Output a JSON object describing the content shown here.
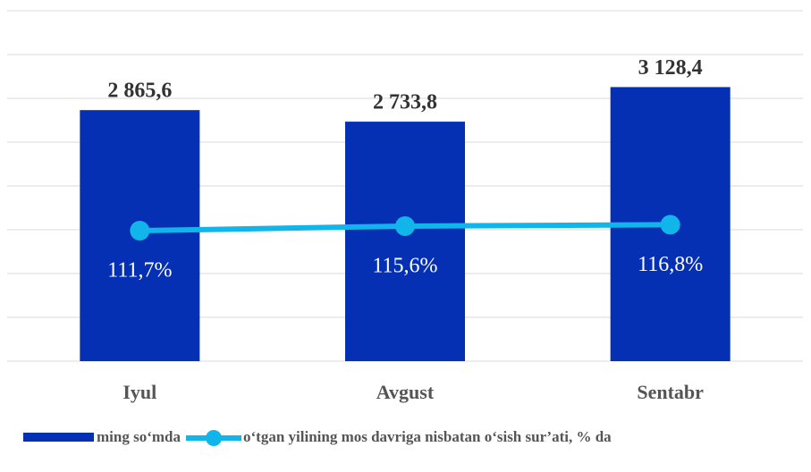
{
  "chart_data": {
    "type": "bar_line",
    "categories": [
      "Iyul",
      "Avgust",
      "Sentabr"
    ],
    "series": [
      {
        "name": "ming so‘mda",
        "type": "bar",
        "color": "#0530b4",
        "values": [
          2865.6,
          2733.8,
          3128.4
        ],
        "value_labels": [
          "2 865,6",
          "2 733,8",
          "3 128,4"
        ]
      },
      {
        "name": "o‘tgan yilining mos davriga nisbatan o‘sish sur’ati, % da",
        "type": "line",
        "axis": "y2",
        "color": "#12b5ea",
        "values": [
          111.7,
          115.6,
          116.8
        ],
        "value_labels": [
          "111,7%",
          "115,6%",
          "116,8%"
        ]
      }
    ],
    "ylim": [
      0,
      4000
    ],
    "yticks": [
      0,
      500,
      1000,
      1500,
      2000,
      2500,
      3000,
      3500,
      4000
    ],
    "y2lim": [
      0,
      300
    ],
    "grid": true,
    "legend": "bottom"
  }
}
